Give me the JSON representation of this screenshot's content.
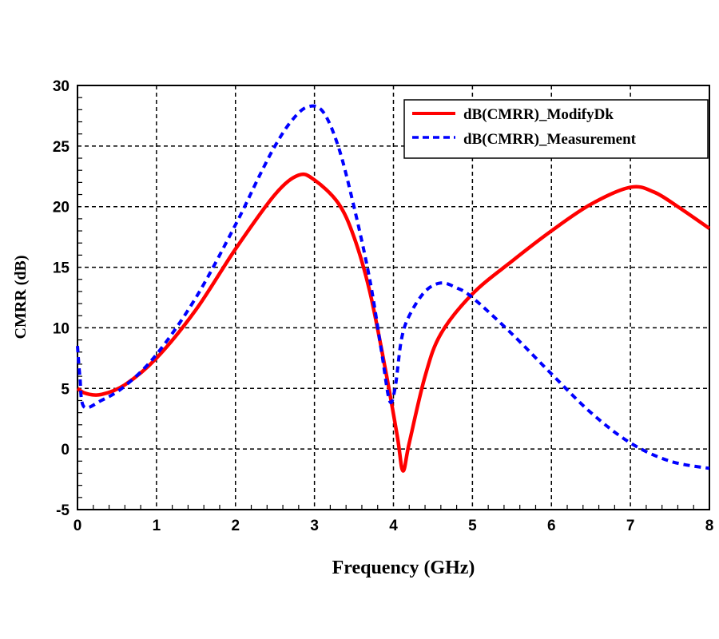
{
  "chart_data": {
    "type": "line",
    "title": "",
    "xlabel": "Frequency (GHz)",
    "ylabel": "CMRR (dB)",
    "xlim": [
      0,
      8
    ],
    "ylim": [
      -5,
      30
    ],
    "xticks": [
      0,
      1,
      2,
      3,
      4,
      5,
      6,
      7,
      8
    ],
    "yticks": [
      -5,
      0,
      5,
      10,
      15,
      20,
      25,
      30
    ],
    "grid": true,
    "legend_position": "top-right",
    "series": [
      {
        "name": "dB(CMRR)_ModifyDk",
        "color": "#ff0000",
        "style": "solid",
        "x": [
          0,
          0.1,
          0.3,
          0.6,
          1,
          1.5,
          2,
          2.5,
          2.8,
          3,
          3.3,
          3.5,
          3.7,
          3.9,
          4.05,
          4.12,
          4.2,
          4.4,
          4.6,
          5,
          5.5,
          6,
          6.5,
          7,
          7.3,
          7.6,
          8
        ],
        "y": [
          5,
          4.6,
          4.5,
          5.3,
          7.5,
          11.5,
          16.5,
          21,
          22.6,
          22.2,
          20.3,
          17.5,
          13,
          6.5,
          1,
          -1.8,
          0.5,
          6,
          9.5,
          12.8,
          15.5,
          18,
          20.2,
          21.6,
          21.2,
          20,
          18.2
        ]
      },
      {
        "name": "dB(CMRR)_Measurement",
        "color": "#0000ff",
        "style": "dashed",
        "x": [
          0,
          0.03,
          0.08,
          0.3,
          0.6,
          1,
          1.5,
          2,
          2.3,
          2.5,
          2.7,
          2.9,
          3.1,
          3.3,
          3.5,
          3.7,
          3.85,
          3.95,
          4.02,
          4.1,
          4.2,
          4.4,
          4.6,
          4.8,
          5,
          5.5,
          6,
          6.5,
          7,
          7.5,
          8
        ],
        "y": [
          8.5,
          6,
          3.5,
          4,
          5.2,
          7.8,
          12.5,
          18.5,
          22.5,
          25,
          27,
          28.2,
          27.9,
          25,
          20,
          14,
          8,
          4,
          5,
          9,
          11,
          13,
          13.7,
          13.3,
          12.5,
          9.5,
          6.2,
          3,
          0.5,
          -1,
          -1.6
        ]
      }
    ]
  }
}
